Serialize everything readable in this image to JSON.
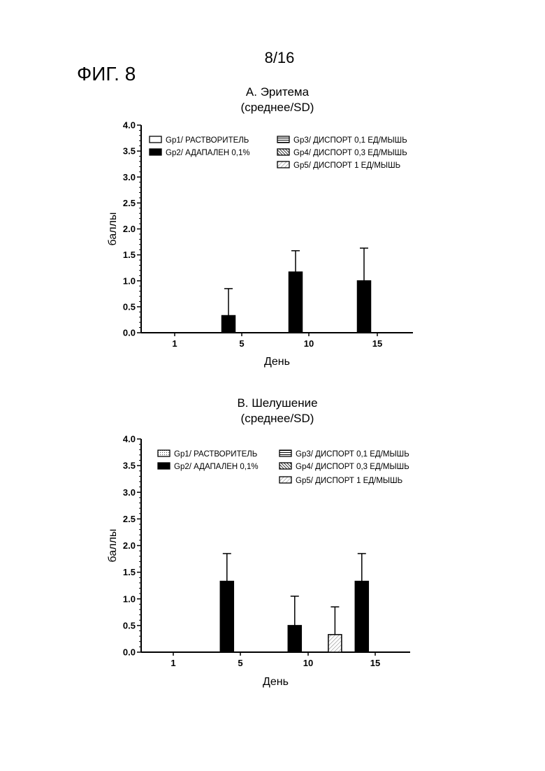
{
  "page_number": "8/16",
  "figure_label": "ФИГ. 8",
  "colors": {
    "ink": "#000000",
    "paper": "#ffffff"
  },
  "chart_data": [
    {
      "type": "bar",
      "title": "A. Эритема",
      "subtitle": "(среднее/SD)",
      "xlabel": "День",
      "ylabel": "баллы",
      "ylim": [
        0,
        4
      ],
      "y_ticks": [
        "0.0",
        "0.5",
        "1.0",
        "1.5",
        "2.0",
        "2.5",
        "3.0",
        "3.5",
        "4.0"
      ],
      "categories": [
        "1",
        "5",
        "10",
        "15"
      ],
      "grid": false,
      "legend_position": "top",
      "series": [
        {
          "name": "Gp1/ РАСТВОРИТЕЛЬ",
          "pattern": "open",
          "values": [
            0,
            0,
            0,
            0
          ],
          "sd": [
            0,
            0,
            0,
            0
          ]
        },
        {
          "name": "Gp2/ АДАПАЛЕН 0,1%",
          "pattern": "solid",
          "values": [
            0,
            0.33,
            1.17,
            1.0
          ],
          "sd": [
            0,
            0.52,
            0.41,
            0.63
          ]
        },
        {
          "name": "Gp3/ ДИСПОРТ 0,1 ЕД/МЫШЬ",
          "pattern": "horizontal",
          "values": [
            0,
            0,
            0,
            0
          ],
          "sd": [
            0,
            0,
            0,
            0
          ]
        },
        {
          "name": "Gp4/ ДИСПОРТ 0,3 ЕД/МЫШЬ",
          "pattern": "diagonal-dense",
          "values": [
            0,
            0,
            0,
            0
          ],
          "sd": [
            0,
            0,
            0,
            0
          ]
        },
        {
          "name": "Gp5/ ДИСПОРТ 1 ЕД/МЫШЬ",
          "pattern": "diagonal-light",
          "values": [
            0,
            0,
            0,
            0
          ],
          "sd": [
            0,
            0,
            0,
            0
          ]
        }
      ]
    },
    {
      "type": "bar",
      "title": "B. Шелушение",
      "subtitle": "(среднее/SD)",
      "xlabel": "День",
      "ylabel": "баллы",
      "ylim": [
        0,
        4
      ],
      "y_ticks": [
        "0.0",
        "0.5",
        "1.0",
        "1.5",
        "2.0",
        "2.5",
        "3.0",
        "3.5",
        "4.0"
      ],
      "categories": [
        "1",
        "5",
        "10",
        "15"
      ],
      "grid": false,
      "legend_position": "top",
      "series": [
        {
          "name": "Gp1/ РАСТВОРИТЕЛЬ",
          "pattern": "dotted",
          "values": [
            0,
            0,
            0,
            0
          ],
          "sd": [
            0,
            0,
            0,
            0
          ]
        },
        {
          "name": "Gp2/ АДАПАЛЕН 0,1%",
          "pattern": "solid",
          "values": [
            0,
            1.33,
            0.5,
            1.33
          ],
          "sd": [
            0,
            0.52,
            0.55,
            0.52
          ]
        },
        {
          "name": "Gp3/ ДИСПОРТ 0,1 ЕД/МЫШЬ",
          "pattern": "horizontal",
          "values": [
            0,
            0,
            0,
            0
          ],
          "sd": [
            0,
            0,
            0,
            0
          ]
        },
        {
          "name": "Gp4/ ДИСПОРТ 0,3 ЕД/МЫШЬ",
          "pattern": "diagonal-dense",
          "values": [
            0,
            0,
            0,
            0
          ],
          "sd": [
            0,
            0,
            0,
            0
          ]
        },
        {
          "name": "Gp5/ ДИСПОРТ 1 ЕД/МЫШЬ",
          "pattern": "diagonal-light",
          "values": [
            0,
            0,
            0.33,
            0
          ],
          "sd": [
            0,
            0,
            0.52,
            0
          ]
        }
      ]
    }
  ]
}
